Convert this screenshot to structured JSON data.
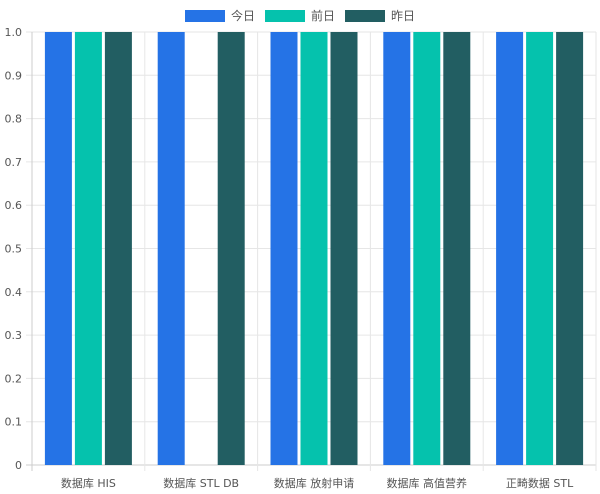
{
  "chart_data": {
    "type": "bar",
    "categories": [
      "数据库 HIS",
      "数据库 STL DB",
      "数据库 放射申请",
      "数据库 高值营养",
      "正畸数据 STL"
    ],
    "series": [
      {
        "name": "今日",
        "color": "#2573e6",
        "values": [
          1,
          1,
          1,
          1,
          1
        ]
      },
      {
        "name": "前日",
        "color": "#05c2ad",
        "values": [
          1,
          0,
          1,
          1,
          1
        ]
      },
      {
        "name": "昨日",
        "color": "#225e62",
        "values": [
          1,
          1,
          1,
          1,
          1
        ]
      }
    ],
    "y_ticks": [
      "0",
      "0.1",
      "0.2",
      "0.3",
      "0.4",
      "0.5",
      "0.6",
      "0.7",
      "0.8",
      "0.9",
      "1.0"
    ],
    "ylim": [
      0,
      1
    ],
    "grid": true,
    "legend_position": "top-center"
  }
}
